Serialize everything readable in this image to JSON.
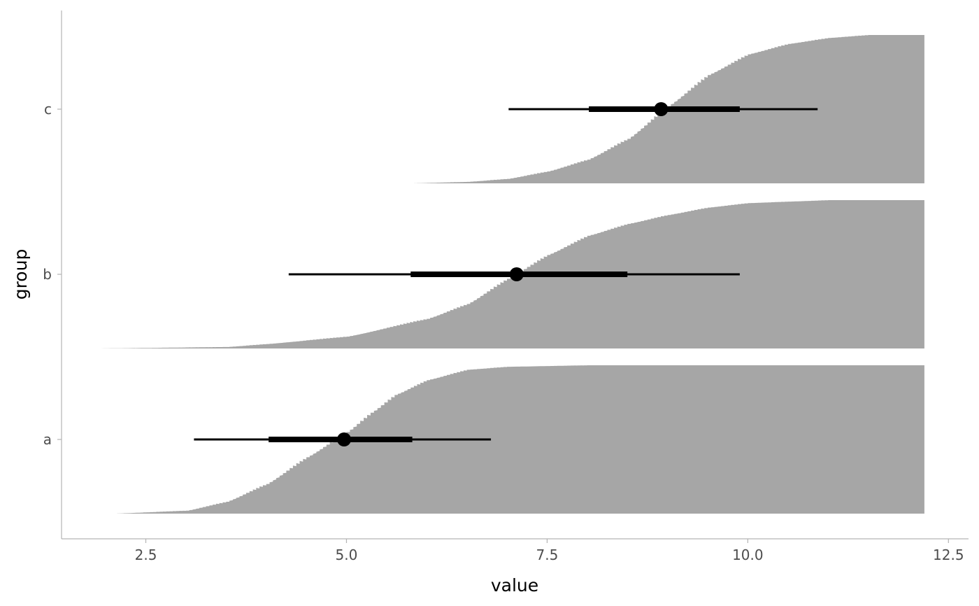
{
  "chart_data": {
    "type": "area",
    "subtype": "cdf ridgeline with point-interval",
    "title": "",
    "xlabel": "value",
    "ylabel": "group",
    "xlim": [
      1.45,
      12.75
    ],
    "x_ticks": [
      2.5,
      5.0,
      7.5,
      10.0,
      12.5
    ],
    "x_tick_labels": [
      "2.5",
      "5.0",
      "7.5",
      "10.0",
      "12.5"
    ],
    "categories": [
      "a",
      "b",
      "c"
    ],
    "grid": false,
    "legend": "none",
    "colors": {
      "fill": "#a6a6a6",
      "interval": "#000000",
      "axis": "#b3b3b3"
    },
    "series": [
      {
        "group": "a",
        "median": 4.97,
        "interval_66": [
          4.03,
          5.82
        ],
        "interval_95": [
          3.1,
          6.8
        ],
        "cdf": [
          [
            2.1,
            0.0
          ],
          [
            3.0,
            0.02
          ],
          [
            3.5,
            0.08
          ],
          [
            4.0,
            0.2
          ],
          [
            4.5,
            0.38
          ],
          [
            5.0,
            0.55
          ],
          [
            5.3,
            0.68
          ],
          [
            5.6,
            0.8
          ],
          [
            6.0,
            0.9
          ],
          [
            6.5,
            0.97
          ],
          [
            7.0,
            0.99
          ],
          [
            8.0,
            1.0
          ],
          [
            12.2,
            1.0
          ]
        ]
      },
      {
        "group": "b",
        "median": 7.12,
        "interval_66": [
          5.8,
          8.5
        ],
        "interval_95": [
          4.28,
          9.9
        ],
        "cdf": [
          [
            1.9,
            0.0
          ],
          [
            3.5,
            0.01
          ],
          [
            4.0,
            0.03
          ],
          [
            5.0,
            0.08
          ],
          [
            6.0,
            0.2
          ],
          [
            6.5,
            0.3
          ],
          [
            7.0,
            0.47
          ],
          [
            7.5,
            0.63
          ],
          [
            8.0,
            0.76
          ],
          [
            8.5,
            0.84
          ],
          [
            9.0,
            0.9
          ],
          [
            9.5,
            0.95
          ],
          [
            10.0,
            0.98
          ],
          [
            10.5,
            0.99
          ],
          [
            11.0,
            1.0
          ],
          [
            12.2,
            1.0
          ]
        ]
      },
      {
        "group": "c",
        "median": 8.92,
        "interval_66": [
          8.02,
          9.9
        ],
        "interval_95": [
          7.02,
          10.87
        ],
        "cdf": [
          [
            5.8,
            0.0
          ],
          [
            6.5,
            0.01
          ],
          [
            7.0,
            0.03
          ],
          [
            7.5,
            0.08
          ],
          [
            8.0,
            0.16
          ],
          [
            8.5,
            0.3
          ],
          [
            9.0,
            0.52
          ],
          [
            9.5,
            0.73
          ],
          [
            10.0,
            0.87
          ],
          [
            10.5,
            0.94
          ],
          [
            11.0,
            0.98
          ],
          [
            11.5,
            1.0
          ],
          [
            12.2,
            1.0
          ]
        ]
      }
    ]
  }
}
